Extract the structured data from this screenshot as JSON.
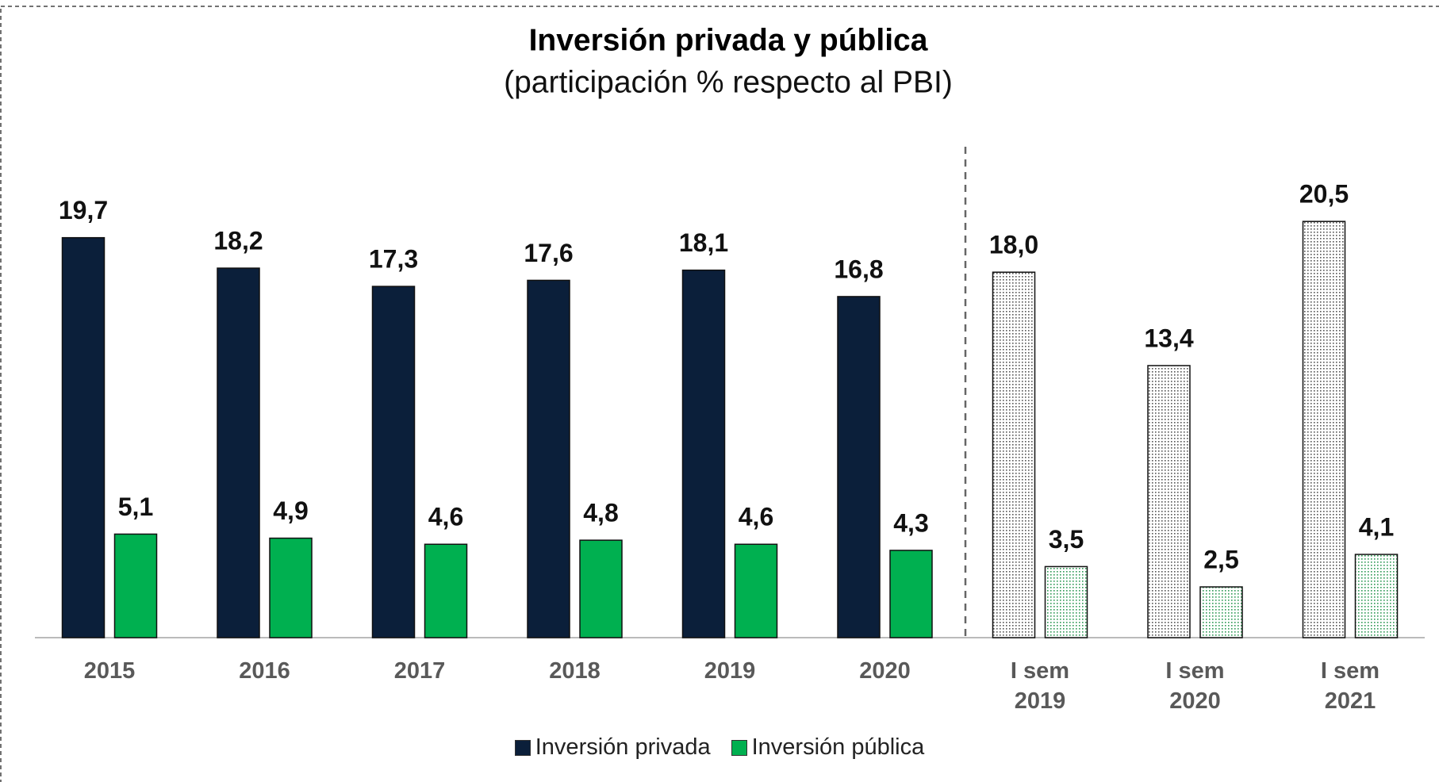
{
  "chart_data": {
    "type": "bar",
    "title": "Inversión privada y pública",
    "subtitle": "(participación % respecto al PBI)",
    "categories": [
      "2015",
      "2016",
      "2017",
      "2018",
      "2019",
      "2020",
      "I sem 2019",
      "I sem 2020",
      "I sem 2021"
    ],
    "series": [
      {
        "name": "Inversión privada",
        "color": "#0b1f3a",
        "values": [
          19.7,
          18.2,
          17.3,
          17.6,
          18.1,
          16.8,
          18.0,
          13.4,
          20.5
        ],
        "value_labels": [
          "19,7",
          "18,2",
          "17,3",
          "17,6",
          "18,1",
          "16,8",
          "18,0",
          "13,4",
          "20,5"
        ]
      },
      {
        "name": "Inversión pública",
        "color": "#00b050",
        "values": [
          5.1,
          4.9,
          4.6,
          4.8,
          4.6,
          4.3,
          3.5,
          2.5,
          4.1
        ],
        "value_labels": [
          "5,1",
          "4,9",
          "4,6",
          "4,8",
          "4,6",
          "4,3",
          "3,5",
          "2,5",
          "4,1"
        ]
      }
    ],
    "legend": "bottom"
  }
}
